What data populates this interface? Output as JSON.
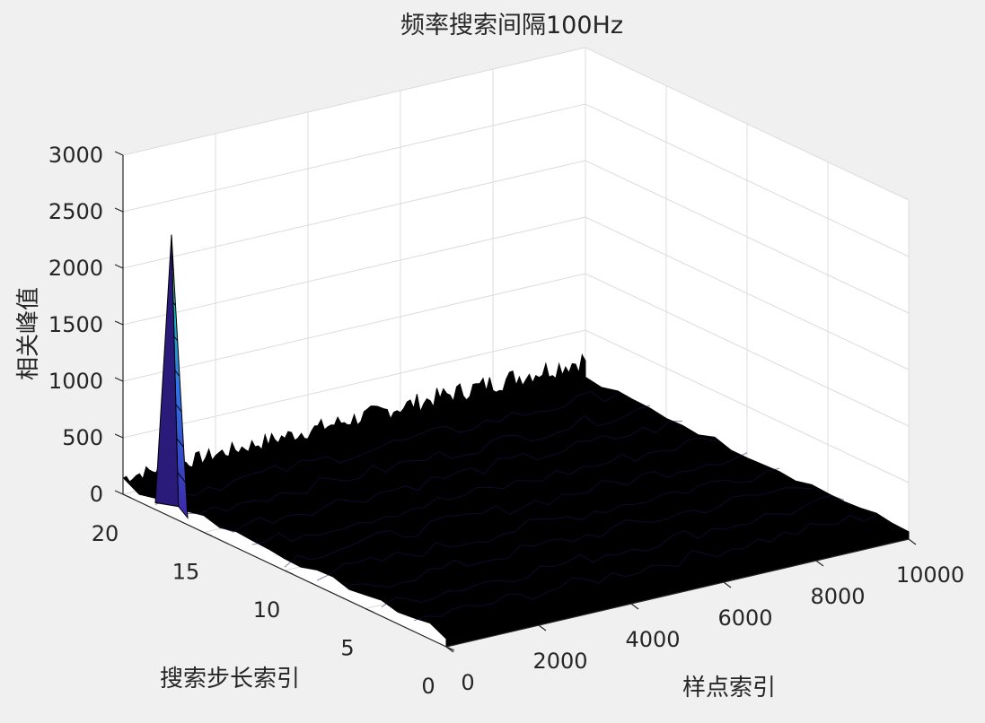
{
  "chart_data": {
    "type": "surface",
    "title": "频率搜索间隔100Hz",
    "xlabel": "样点索引",
    "ylabel": "搜索步长索引",
    "zlabel": "相关峰值",
    "xlim": [
      0,
      10000
    ],
    "ylim": [
      0,
      20
    ],
    "zlim": [
      0,
      3000
    ],
    "xticks": [
      "0",
      "2000",
      "4000",
      "6000",
      "8000",
      "10000"
    ],
    "yticks": [
      "0",
      "5",
      "10",
      "15",
      "20"
    ],
    "zticks": [
      "0",
      "500",
      "1000",
      "1500",
      "2000",
      "2500",
      "3000"
    ],
    "grid": true,
    "colormap": "parula",
    "peak": {
      "x": 0,
      "y": 17,
      "z": 2500
    },
    "background_level": {
      "near_zero_x": 150,
      "far_x": 250
    }
  }
}
